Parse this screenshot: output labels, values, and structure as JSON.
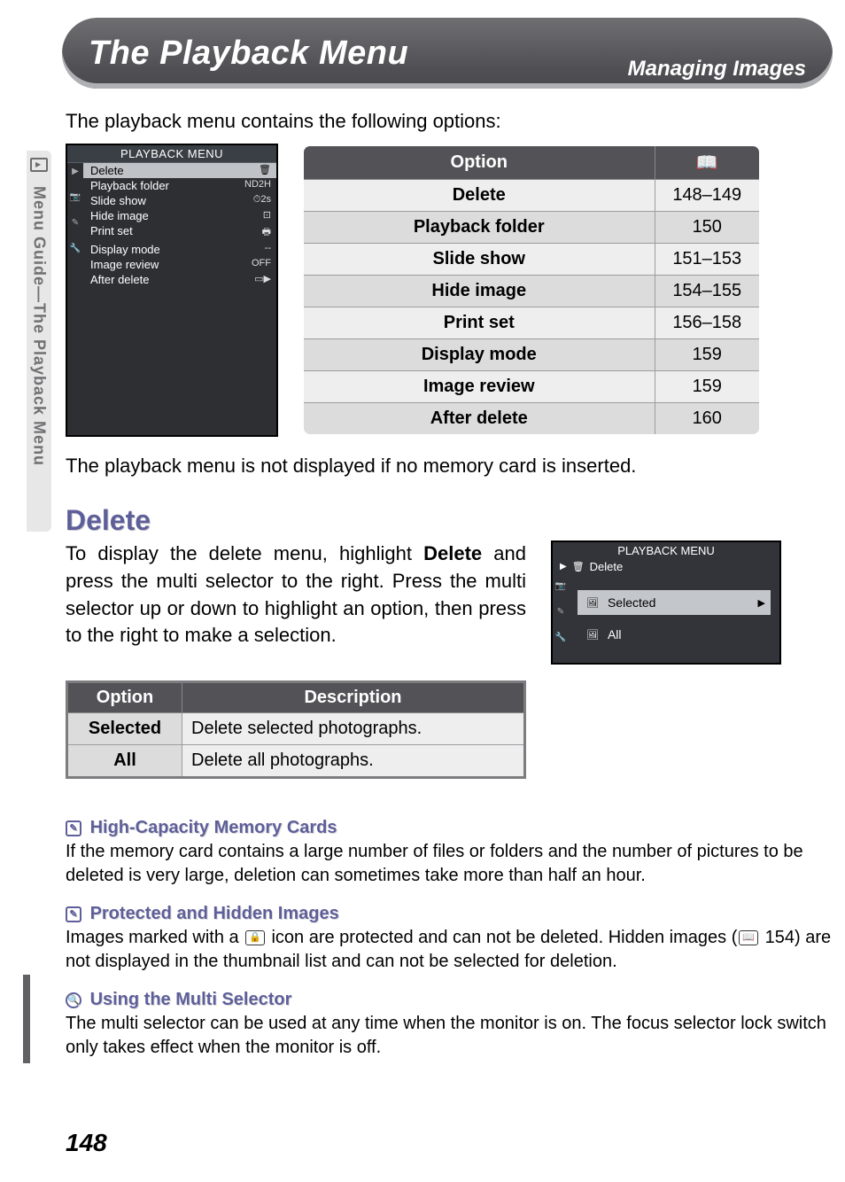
{
  "header": {
    "title": "The Playback Menu",
    "subtitle": "Managing Images"
  },
  "sideTab": "Menu Guide—The Playback Menu",
  "intro": "The playback menu contains the following options:",
  "lcd1": {
    "title": "PLAYBACK MENU",
    "rows": [
      {
        "label": "Delete",
        "val": "🗑",
        "hl": true
      },
      {
        "label": "Playback folder",
        "val": "ND2H",
        "hl": false
      },
      {
        "label": "Slide show",
        "val": "⏱2s",
        "hl": false
      },
      {
        "label": "Hide image",
        "val": "⊡",
        "hl": false
      },
      {
        "label": "Print set",
        "val": "🖶",
        "hl": false
      },
      {
        "label": "Display mode",
        "val": "--",
        "hl": false
      },
      {
        "label": "Image review",
        "val": "OFF",
        "hl": false
      },
      {
        "label": "After delete",
        "val": "▭▶",
        "hl": false
      }
    ]
  },
  "optTable": {
    "headers": {
      "opt": "Option",
      "page": "📖"
    },
    "rows": [
      {
        "opt": "Delete",
        "page": "148–149"
      },
      {
        "opt": "Playback folder",
        "page": "150"
      },
      {
        "opt": "Slide show",
        "page": "151–153"
      },
      {
        "opt": "Hide image",
        "page": "154–155"
      },
      {
        "opt": "Print set",
        "page": "156–158"
      },
      {
        "opt": "Display mode",
        "page": "159"
      },
      {
        "opt": "Image review",
        "page": "159"
      },
      {
        "opt": "After delete",
        "page": "160"
      }
    ]
  },
  "bodyNote": "The playback menu is not displayed if no memory card is inserted.",
  "delete": {
    "heading": "Delete",
    "para_a": "To display the delete menu, highlight ",
    "para_bold": "Delete",
    "para_b": " and press the multi selector to the right.  Press the multi selector up or down to highlight an option, then press to the right to make a selection."
  },
  "lcd2": {
    "title": "PLAYBACK MENU",
    "sub": "Delete",
    "items": [
      {
        "label": "Selected",
        "hl": true
      },
      {
        "label": "All",
        "hl": false
      }
    ]
  },
  "descTable": {
    "headers": {
      "opt": "Option",
      "desc": "Description"
    },
    "rows": [
      {
        "opt": "Selected",
        "desc": "Delete selected photographs."
      },
      {
        "opt": "All",
        "desc": "Delete all photographs."
      }
    ]
  },
  "notes": [
    {
      "icon": "✎",
      "title": "High-Capacity Memory Cards",
      "text": "If the memory card contains a large number of files or folders and the number of pictures to be deleted is very large, deletion can sometimes take more than half an hour."
    },
    {
      "icon": "✎",
      "title": "Protected and Hidden Images",
      "text_a": "Images marked with a ",
      "text_icon": "🔒",
      "text_b": " icon are protected and can not be deleted.  Hidden images (",
      "text_icon2": "📖",
      "text_c": " 154) are not displayed in the thumbnail list and can not be selected for deletion."
    },
    {
      "icon": "🔍",
      "title": "Using the Multi Selector",
      "text": "The multi selector can be used at any time when the monitor is on.  The focus selector lock switch only takes effect when the monitor is off."
    }
  ],
  "pageNum": "148",
  "colors": {
    "header_bg": "#515155",
    "accent": "#5e5f9a",
    "table_header": "#535357",
    "zebra_dark": "#dcdcdd",
    "zebra_light": "#eeeeef"
  }
}
